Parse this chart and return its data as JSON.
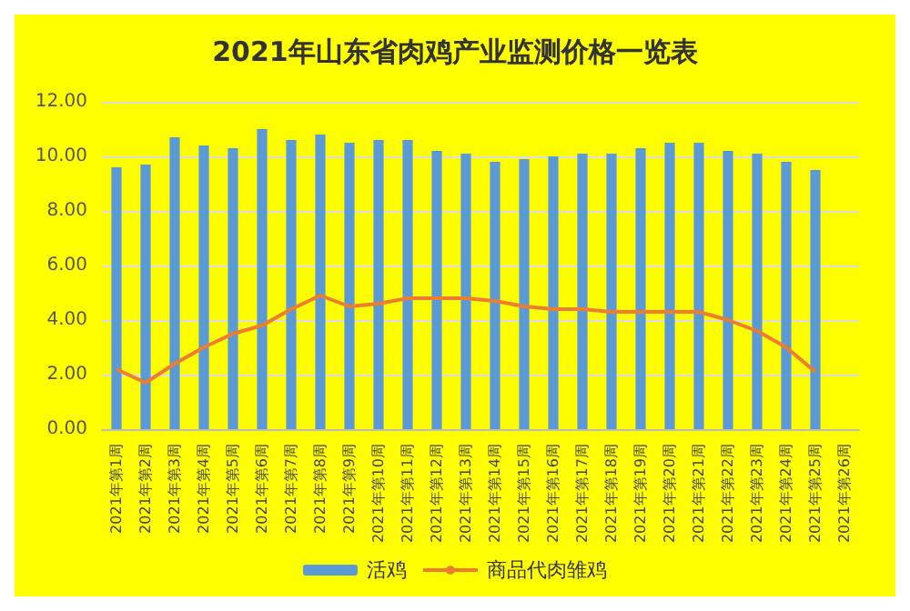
{
  "chart_data": {
    "type": "bar",
    "title": "2021年山东省肉鸡产业监测价格一览表",
    "categories": [
      "2021年第1周",
      "2021年第2周",
      "2021年第3周",
      "2021年第4周",
      "2021年第5周",
      "2021年第6周",
      "2021年第7周",
      "2021年第8周",
      "2021年第9周",
      "2021年第10周",
      "2021年第11周",
      "2021年第12周",
      "2021年第13周",
      "2021年第14周",
      "2021年第15周",
      "2021年第16周",
      "2021年第17周",
      "2021年第18周",
      "2021年第19周",
      "2021年第20周",
      "2021年第21周",
      "2021年第22周",
      "2021年第23周",
      "2021年第24周",
      "2021年第25周",
      "2021年第26周"
    ],
    "series": [
      {
        "name": "活鸡",
        "color": "#5b9bd5",
        "values": [
          9.6,
          9.7,
          10.7,
          10.4,
          10.3,
          11.0,
          10.6,
          10.8,
          10.5,
          10.6,
          10.6,
          10.2,
          10.1,
          9.8,
          9.9,
          10.0,
          10.1,
          10.1,
          10.3,
          10.5,
          10.5,
          10.2,
          10.1,
          9.8,
          9.5,
          null
        ]
      },
      {
        "name": "商品代肉雏鸡",
        "type": "line",
        "color": "#ed7d31",
        "values": [
          2.2,
          1.7,
          2.4,
          3.0,
          3.5,
          3.8,
          4.4,
          4.9,
          4.5,
          4.6,
          4.8,
          4.8,
          4.8,
          4.7,
          4.5,
          4.4,
          4.4,
          4.3,
          4.3,
          4.3,
          4.3,
          4.0,
          3.6,
          3.0,
          2.1,
          null
        ]
      }
    ],
    "ylim": [
      0,
      12
    ],
    "yticks": [
      {
        "value": 0,
        "label": "0.00"
      },
      {
        "value": 2,
        "label": "2.00"
      },
      {
        "value": 4,
        "label": "4.00"
      },
      {
        "value": 6,
        "label": "6.00"
      },
      {
        "value": 8,
        "label": "8.00"
      },
      {
        "value": 10,
        "label": "10.00"
      },
      {
        "value": 12,
        "label": "12.00"
      }
    ],
    "grid": "y",
    "legend": "bottom",
    "marker": "none"
  }
}
